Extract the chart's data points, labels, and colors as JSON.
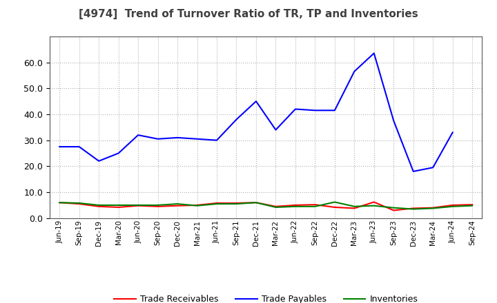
{
  "title": "[4974]  Trend of Turnover Ratio of TR, TP and Inventories",
  "labels": [
    "Jun-19",
    "Sep-19",
    "Dec-19",
    "Mar-20",
    "Jun-20",
    "Sep-20",
    "Dec-20",
    "Mar-21",
    "Jun-21",
    "Sep-21",
    "Dec-21",
    "Mar-22",
    "Jun-22",
    "Sep-22",
    "Dec-22",
    "Mar-23",
    "Jun-23",
    "Sep-23",
    "Dec-23",
    "Mar-24",
    "Jun-24",
    "Sep-24"
  ],
  "trade_receivables": [
    6.0,
    5.5,
    4.5,
    4.2,
    4.8,
    4.5,
    4.8,
    5.0,
    5.8,
    5.8,
    6.0,
    4.5,
    5.0,
    5.2,
    4.2,
    3.8,
    6.2,
    3.0,
    3.8,
    4.0,
    5.0,
    5.2
  ],
  "trade_payables": [
    27.5,
    27.5,
    22.0,
    25.0,
    32.0,
    30.5,
    31.0,
    30.5,
    30.0,
    38.0,
    45.0,
    34.0,
    42.0,
    41.5,
    41.5,
    56.5,
    63.5,
    37.5,
    18.0,
    19.5,
    33.0,
    null
  ],
  "inventories": [
    6.0,
    5.8,
    5.0,
    5.0,
    5.0,
    5.0,
    5.5,
    4.8,
    5.5,
    5.5,
    6.0,
    4.2,
    4.5,
    4.5,
    6.2,
    4.5,
    4.8,
    4.0,
    3.5,
    3.8,
    4.5,
    4.8
  ],
  "ylim": [
    0.0,
    70.0
  ],
  "yticks": [
    0.0,
    10.0,
    20.0,
    30.0,
    40.0,
    50.0,
    60.0
  ],
  "colors": {
    "trade_receivables": "#ff0000",
    "trade_payables": "#0000ff",
    "inventories": "#008000"
  },
  "title_color": "#404040",
  "background_color": "#ffffff",
  "plot_bg_color": "#ffffff",
  "grid_color": "#b0b0b0"
}
